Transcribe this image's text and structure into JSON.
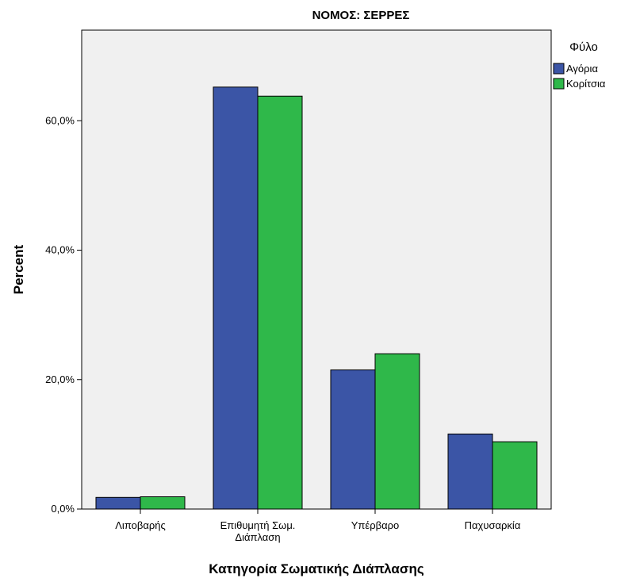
{
  "chart_data": {
    "type": "bar",
    "title": "ΝΟΜΟΣ: ΣΕΡΡΕΣ",
    "xlabel": "Κατηγορία Σωματικής Διάπλασης",
    "ylabel": "Percent",
    "categories": [
      [
        "Λιποβαρής"
      ],
      [
        "Επιθυμητή Σωμ.",
        "Διάπλαση"
      ],
      [
        "Υπέρβαρο"
      ],
      [
        "Παχυσαρκία"
      ]
    ],
    "yticks": [
      {
        "value": 0,
        "label": "0,0%"
      },
      {
        "value": 20,
        "label": "20,0%"
      },
      {
        "value": 40,
        "label": "40,0%"
      },
      {
        "value": 60,
        "label": "60,0%"
      }
    ],
    "ylim": [
      0,
      74
    ],
    "grid": false,
    "legend": {
      "title": "Φύλο",
      "position": "right"
    },
    "series": [
      {
        "name": "Αγόρια",
        "color": "#3b55a6",
        "values": [
          1.8,
          65.2,
          21.5,
          11.6
        ]
      },
      {
        "name": "Κορίτσια",
        "color": "#2fb84a",
        "values": [
          1.9,
          63.8,
          24.0,
          10.4
        ]
      }
    ],
    "colors": {
      "plot_background": "#f0f0f0",
      "axis": "#000000"
    }
  }
}
